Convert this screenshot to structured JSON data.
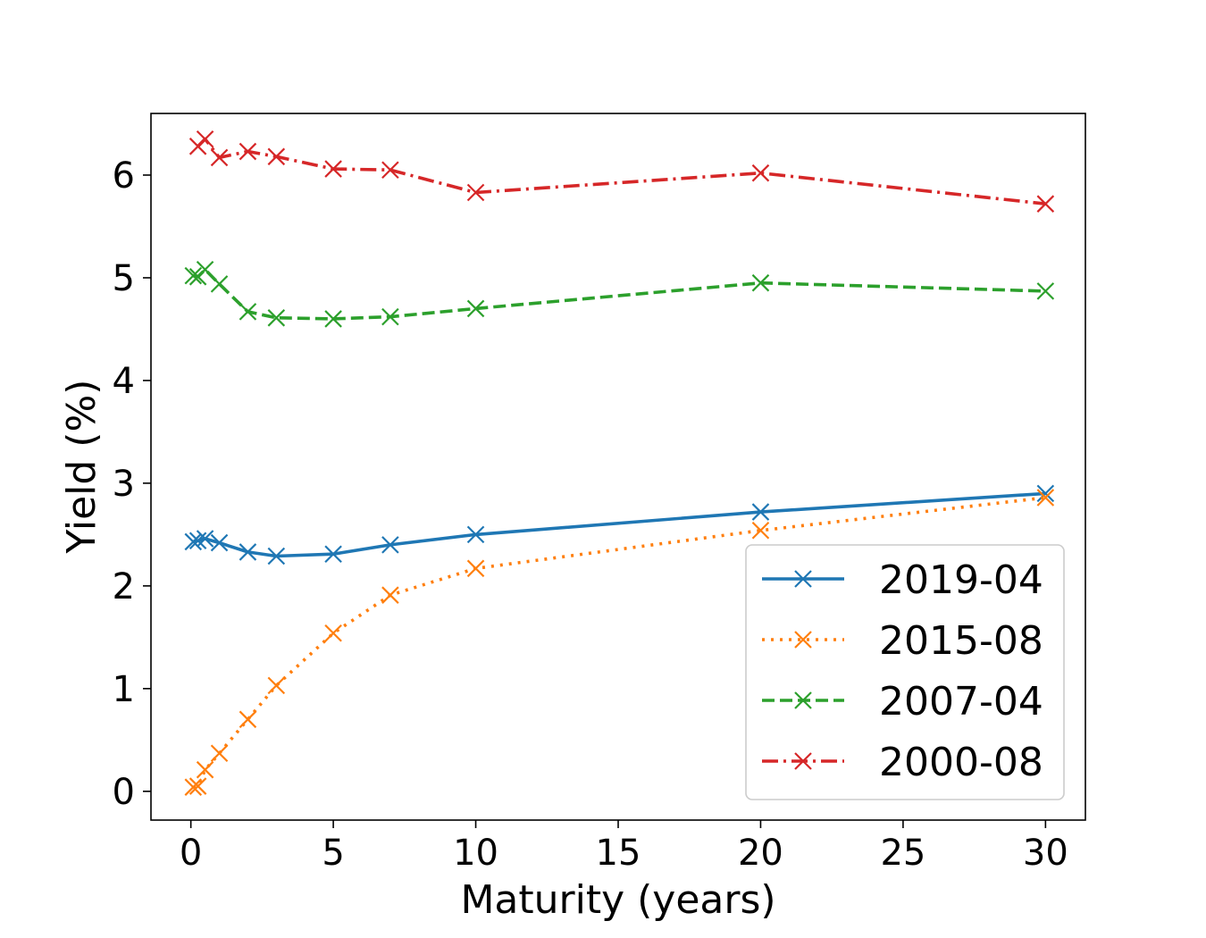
{
  "chart_data": {
    "type": "line",
    "title": "",
    "xlabel": "Maturity (years)",
    "ylabel": "Yield (%)",
    "xlim": [
      -1.4,
      31.4
    ],
    "ylim": [
      -0.28,
      6.6
    ],
    "xticks": [
      0,
      5,
      10,
      15,
      20,
      25,
      30
    ],
    "yticks": [
      0,
      1,
      2,
      3,
      4,
      5,
      6
    ],
    "grid": false,
    "legend_position": "lower-right",
    "marker": "x",
    "series": [
      {
        "name": "2019-04",
        "color": "#1f77b4",
        "linestyle": "solid",
        "x": [
          0.083,
          0.25,
          0.5,
          1,
          2,
          3,
          5,
          7,
          10,
          20,
          30
        ],
        "y": [
          2.43,
          2.44,
          2.46,
          2.42,
          2.33,
          2.29,
          2.31,
          2.4,
          2.5,
          2.72,
          2.9
        ]
      },
      {
        "name": "2015-08",
        "color": "#ff7f0e",
        "linestyle": "dotted",
        "x": [
          0.083,
          0.25,
          0.5,
          1,
          2,
          3,
          5,
          7,
          10,
          20,
          30
        ],
        "y": [
          0.04,
          0.05,
          0.21,
          0.37,
          0.7,
          1.03,
          1.54,
          1.91,
          2.17,
          2.54,
          2.86
        ]
      },
      {
        "name": "2007-04",
        "color": "#2ca02c",
        "linestyle": "dashed",
        "x": [
          0.083,
          0.25,
          0.5,
          1,
          2,
          3,
          5,
          7,
          10,
          20,
          30
        ],
        "y": [
          5.02,
          5.01,
          5.08,
          4.94,
          4.67,
          4.61,
          4.6,
          4.62,
          4.7,
          4.95,
          4.87
        ]
      },
      {
        "name": "2000-08",
        "color": "#d62728",
        "linestyle": "dashdot",
        "x": [
          0.25,
          0.5,
          1,
          2,
          3,
          5,
          7,
          10,
          20,
          30
        ],
        "y": [
          6.28,
          6.35,
          6.17,
          6.23,
          6.18,
          6.06,
          6.05,
          5.83,
          6.02,
          5.72
        ]
      }
    ]
  }
}
